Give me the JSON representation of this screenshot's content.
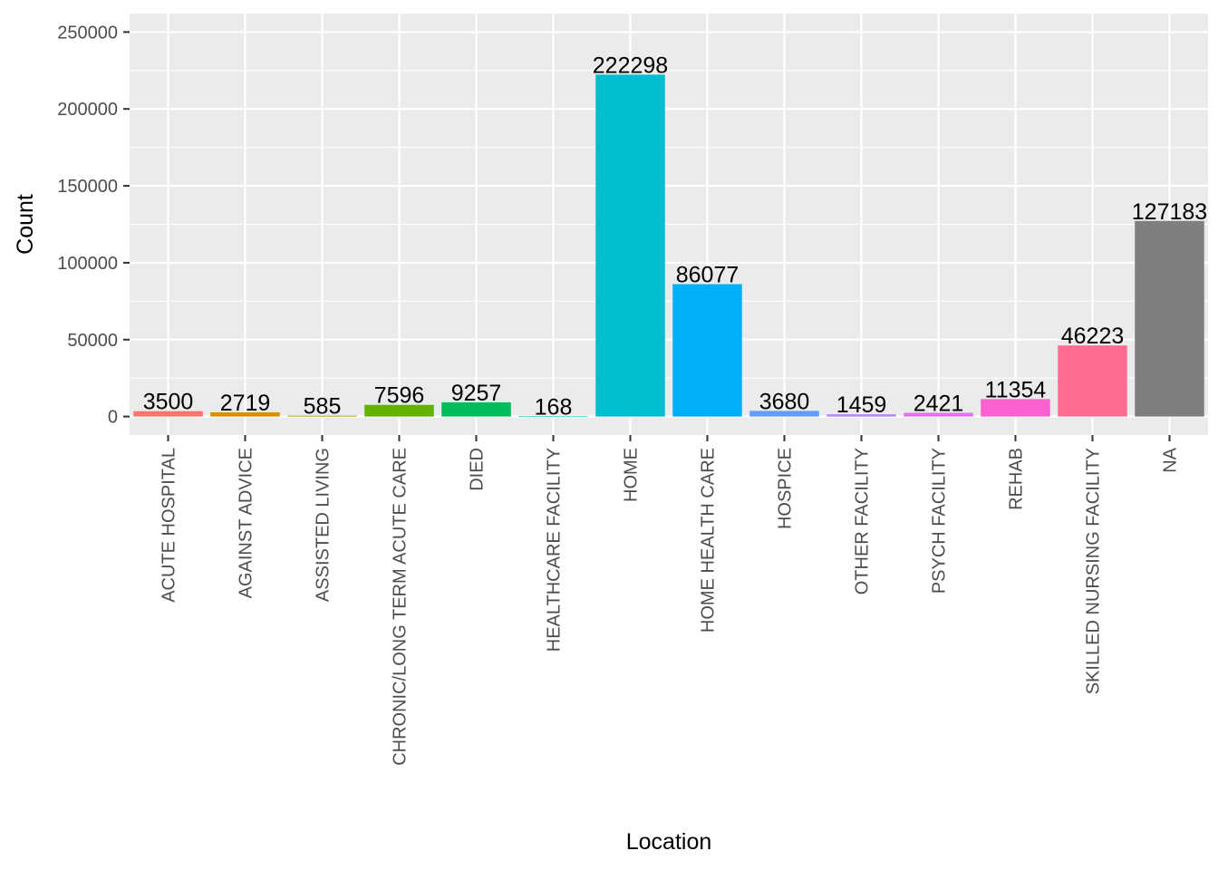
{
  "chart_data": {
    "type": "bar",
    "title": "",
    "xlabel": "Location",
    "ylabel": "Count",
    "ylim": [
      -12000,
      262000
    ],
    "yticks": [
      0,
      50000,
      100000,
      150000,
      200000,
      250000
    ],
    "ytick_labels": [
      "0",
      "50000",
      "100000",
      "150000",
      "200000",
      "250000"
    ],
    "grid": true,
    "legend": "none",
    "categories": [
      "ACUTE HOSPITAL",
      "AGAINST ADVICE",
      "ASSISTED LIVING",
      "CHRONIC/LONG TERM ACUTE CARE",
      "DIED",
      "HEALTHCARE FACILITY",
      "HOME",
      "HOME HEALTH CARE",
      "HOSPICE",
      "OTHER FACILITY",
      "PSYCH FACILITY",
      "REHAB",
      "SKILLED NURSING FACILITY",
      "NA"
    ],
    "values": [
      3500,
      2719,
      585,
      7596,
      9257,
      168,
      222298,
      86077,
      3680,
      1459,
      2421,
      11354,
      46223,
      127183
    ],
    "data_labels": [
      "3500",
      "2719",
      "585",
      "7596",
      "9257",
      "168",
      "222298",
      "86077",
      "3680",
      "1459",
      "2421",
      "11354",
      "46223",
      "127183"
    ],
    "colors": [
      "#F8766D",
      "#DB8E00",
      "#AEA200",
      "#64B200",
      "#00BD5C",
      "#00C1A7",
      "#00BDD0",
      "#00B0F6",
      "#619CFF",
      "#B983FF",
      "#E76BF3",
      "#FD61D1",
      "#FF6C91",
      "#7F7F7F"
    ],
    "panel_background": "#EBEBEB",
    "grid_color": "#FFFFFF"
  }
}
